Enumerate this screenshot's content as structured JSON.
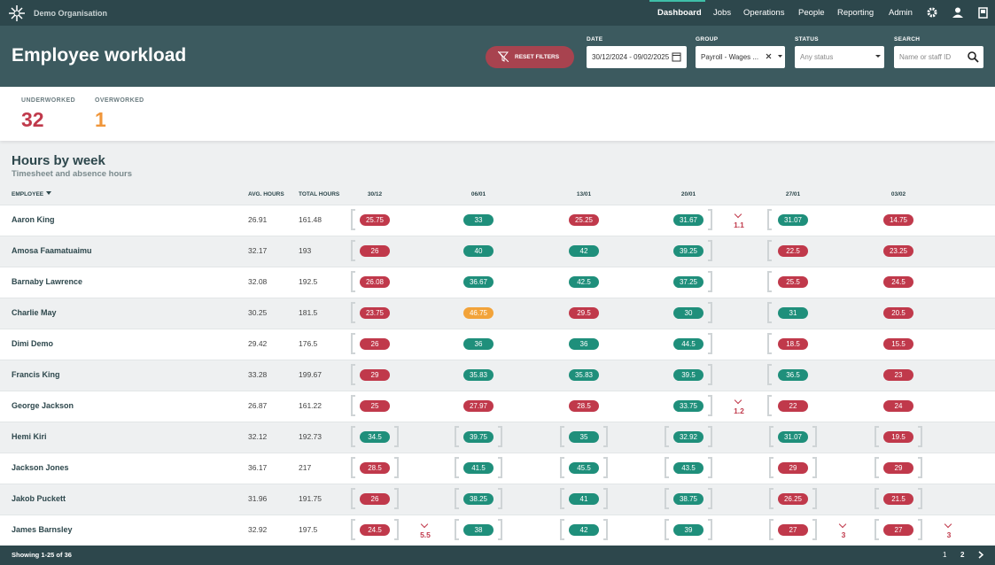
{
  "header": {
    "org": "Demo Organisation",
    "nav": [
      "Dashboard",
      "Jobs",
      "Operations",
      "People",
      "Reporting",
      "Admin"
    ]
  },
  "page": {
    "title": "Employee workload"
  },
  "filters": {
    "reset": "RESET FILTERS",
    "date_label": "DATE",
    "date_value": "30/12/2024 - 09/02/2025",
    "group_label": "GROUP",
    "group_value": "Payroll - Wages ...",
    "status_label": "STATUS",
    "status_placeholder": "Any status",
    "search_label": "SEARCH",
    "search_placeholder": "Name or staff ID"
  },
  "summary": {
    "underworked_label": "UNDERWORKED",
    "underworked": 32,
    "overworked_label": "OVERWORKED",
    "overworked": 1
  },
  "section": {
    "title": "Hours by week",
    "subtitle": "Timesheet and absence hours"
  },
  "table": {
    "columns": [
      "EMPLOYEE",
      "AVG. HOURS",
      "TOTAL HOURS"
    ],
    "weeks": [
      "30/12",
      "06/01",
      "13/01",
      "20/01",
      "27/01",
      "03/02"
    ],
    "colors": {
      "under": "#c0394b",
      "ok": "#1f8f7b",
      "over": "#f2a33a"
    },
    "rows": [
      {
        "name": "Aaron King",
        "avg": 26.91,
        "total": 161.48,
        "hours": [
          25.75,
          33,
          25.25,
          31.67,
          31.07,
          14.75
        ],
        "status": [
          "under",
          "ok",
          "under",
          "ok",
          "ok",
          "under"
        ],
        "gaps": [
          null,
          null,
          null,
          1.1,
          null,
          null
        ]
      },
      {
        "name": "Amosa Faamatuaimu",
        "avg": 32.17,
        "total": 193,
        "hours": [
          26,
          40,
          42,
          39.25,
          22.5,
          23.25
        ],
        "status": [
          "under",
          "ok",
          "ok",
          "ok",
          "under",
          "under"
        ],
        "gaps": [
          null,
          null,
          null,
          null,
          null,
          null
        ]
      },
      {
        "name": "Barnaby Lawrence",
        "avg": 32.08,
        "total": 192.5,
        "hours": [
          26.08,
          36.67,
          42.5,
          37.25,
          25.5,
          24.5
        ],
        "status": [
          "under",
          "ok",
          "ok",
          "ok",
          "under",
          "under"
        ],
        "gaps": [
          null,
          null,
          null,
          null,
          null,
          null
        ]
      },
      {
        "name": "Charlie May",
        "avg": 30.25,
        "total": 181.5,
        "hours": [
          23.75,
          46.75,
          29.5,
          30,
          31,
          20.5
        ],
        "status": [
          "under",
          "over",
          "under",
          "ok",
          "ok",
          "under"
        ],
        "gaps": [
          null,
          null,
          null,
          null,
          null,
          null
        ]
      },
      {
        "name": "Dimi Demo",
        "avg": 29.42,
        "total": 176.5,
        "hours": [
          26,
          36,
          36,
          44.5,
          18.5,
          15.5
        ],
        "status": [
          "under",
          "ok",
          "ok",
          "ok",
          "under",
          "under"
        ],
        "gaps": [
          null,
          null,
          null,
          null,
          null,
          null
        ]
      },
      {
        "name": "Francis King",
        "avg": 33.28,
        "total": 199.67,
        "hours": [
          29,
          35.83,
          35.83,
          39.5,
          36.5,
          23
        ],
        "status": [
          "under",
          "ok",
          "ok",
          "ok",
          "ok",
          "under"
        ],
        "gaps": [
          null,
          null,
          null,
          null,
          null,
          null
        ]
      },
      {
        "name": "George Jackson",
        "avg": 26.87,
        "total": 161.22,
        "hours": [
          25,
          27.97,
          28.5,
          33.75,
          22,
          24
        ],
        "status": [
          "under",
          "under",
          "under",
          "ok",
          "under",
          "under"
        ],
        "gaps": [
          null,
          null,
          null,
          1.2,
          null,
          null
        ]
      },
      {
        "name": "Hemi Kiri",
        "avg": 32.12,
        "total": 192.73,
        "hours": [
          34.5,
          39.75,
          35,
          32.92,
          31.07,
          19.5
        ],
        "status": [
          "ok",
          "ok",
          "ok",
          "ok",
          "ok",
          "under"
        ],
        "gaps": [
          null,
          null,
          null,
          null,
          null,
          null
        ]
      },
      {
        "name": "Jackson Jones",
        "avg": 36.17,
        "total": 217,
        "hours": [
          28.5,
          41.5,
          45.5,
          43.5,
          29,
          29
        ],
        "status": [
          "under",
          "ok",
          "ok",
          "ok",
          "under",
          "under"
        ],
        "gaps": [
          null,
          null,
          null,
          null,
          null,
          null
        ]
      },
      {
        "name": "Jakob Puckett",
        "avg": 31.96,
        "total": 191.75,
        "hours": [
          26,
          38.25,
          41,
          38.75,
          26.25,
          21.5
        ],
        "status": [
          "under",
          "ok",
          "ok",
          "ok",
          "under",
          "under"
        ],
        "gaps": [
          null,
          null,
          null,
          null,
          null,
          null
        ]
      },
      {
        "name": "James Barnsley",
        "avg": 32.92,
        "total": 197.5,
        "hours": [
          24.5,
          38,
          42,
          39,
          27,
          27
        ],
        "status": [
          "under",
          "ok",
          "ok",
          "ok",
          "under",
          "under"
        ],
        "gaps": [
          5.5,
          null,
          null,
          null,
          3,
          3
        ]
      }
    ]
  },
  "footer": {
    "showing": "Showing 1-25 of 36",
    "pages": [
      "1",
      "2"
    ]
  }
}
